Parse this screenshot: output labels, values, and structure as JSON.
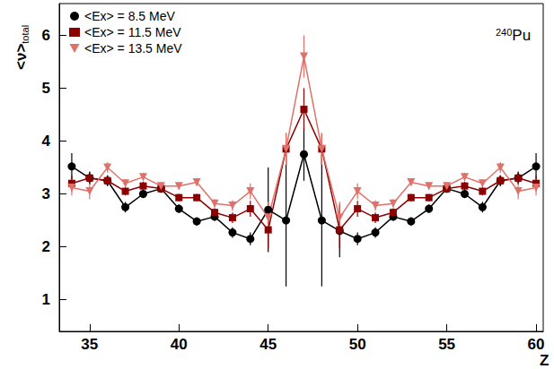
{
  "chart_data": {
    "type": "line",
    "y_label": {
      "text": "<ν>",
      "subscript": "total"
    },
    "x_label": "Z",
    "annotation": {
      "superscript": "240",
      "text": "Pu"
    },
    "xlim": [
      33.3,
      60.4
    ],
    "xticks": [
      35,
      40,
      45,
      50,
      55,
      60
    ],
    "ylim": [
      0.4,
      6.6
    ],
    "yticks": [
      1,
      2,
      3,
      4,
      5,
      6
    ],
    "grid": false,
    "legend": "upper left",
    "x": [
      34,
      35,
      36,
      37,
      38,
      39,
      40,
      41,
      42,
      43,
      44,
      45,
      46,
      47,
      48,
      49,
      50,
      51,
      52,
      53,
      54,
      55,
      56,
      57,
      58,
      59,
      60
    ],
    "series": [
      {
        "name": "<Ex> = 8.5 MeV",
        "color": "#000000",
        "marker": "circle",
        "values": [
          3.52,
          3.3,
          3.25,
          2.75,
          3.0,
          3.1,
          2.72,
          2.48,
          2.57,
          2.27,
          2.15,
          2.7,
          2.5,
          3.75,
          2.5,
          2.3,
          2.15,
          2.27,
          2.57,
          2.48,
          2.72,
          3.1,
          3.0,
          2.75,
          3.25,
          3.3,
          3.52
        ],
        "errors": [
          0.25,
          0.12,
          0.1,
          0.1,
          0.08,
          0.08,
          0.08,
          0.08,
          0.08,
          0.1,
          0.12,
          0.8,
          1.25,
          0.5,
          1.25,
          0.5,
          0.12,
          0.1,
          0.08,
          0.08,
          0.08,
          0.08,
          0.08,
          0.1,
          0.1,
          0.12,
          0.25
        ]
      },
      {
        "name": "<Ex> = 11.5 MeV",
        "color": "#8b0000",
        "marker": "square",
        "values": [
          3.2,
          3.3,
          3.25,
          3.05,
          3.15,
          3.1,
          2.93,
          2.93,
          2.65,
          2.55,
          2.72,
          2.32,
          3.85,
          4.6,
          3.85,
          2.32,
          2.72,
          2.55,
          2.65,
          2.93,
          2.93,
          3.1,
          3.15,
          3.05,
          3.25,
          3.3,
          3.2
        ],
        "errors": [
          0.15,
          0.12,
          0.1,
          0.08,
          0.08,
          0.07,
          0.07,
          0.07,
          0.08,
          0.1,
          0.15,
          0.35,
          0.3,
          0.4,
          0.3,
          0.35,
          0.15,
          0.1,
          0.08,
          0.07,
          0.07,
          0.07,
          0.08,
          0.08,
          0.1,
          0.12,
          0.15
        ]
      },
      {
        "name": "<Ex> = 13.5 MeV",
        "color": "#e0706a",
        "marker": "triangle_down",
        "values": [
          3.12,
          3.05,
          3.5,
          3.2,
          3.32,
          3.15,
          3.15,
          3.22,
          2.82,
          2.78,
          3.05,
          2.55,
          3.85,
          5.6,
          3.85,
          2.55,
          3.05,
          2.78,
          2.82,
          3.22,
          3.15,
          3.15,
          3.32,
          3.2,
          3.5,
          3.05,
          3.12
        ],
        "errors": [
          0.15,
          0.15,
          0.1,
          0.08,
          0.08,
          0.07,
          0.07,
          0.07,
          0.08,
          0.1,
          0.15,
          0.3,
          0.3,
          0.4,
          0.3,
          0.3,
          0.15,
          0.1,
          0.08,
          0.07,
          0.07,
          0.07,
          0.08,
          0.08,
          0.1,
          0.15,
          0.15
        ]
      }
    ]
  }
}
